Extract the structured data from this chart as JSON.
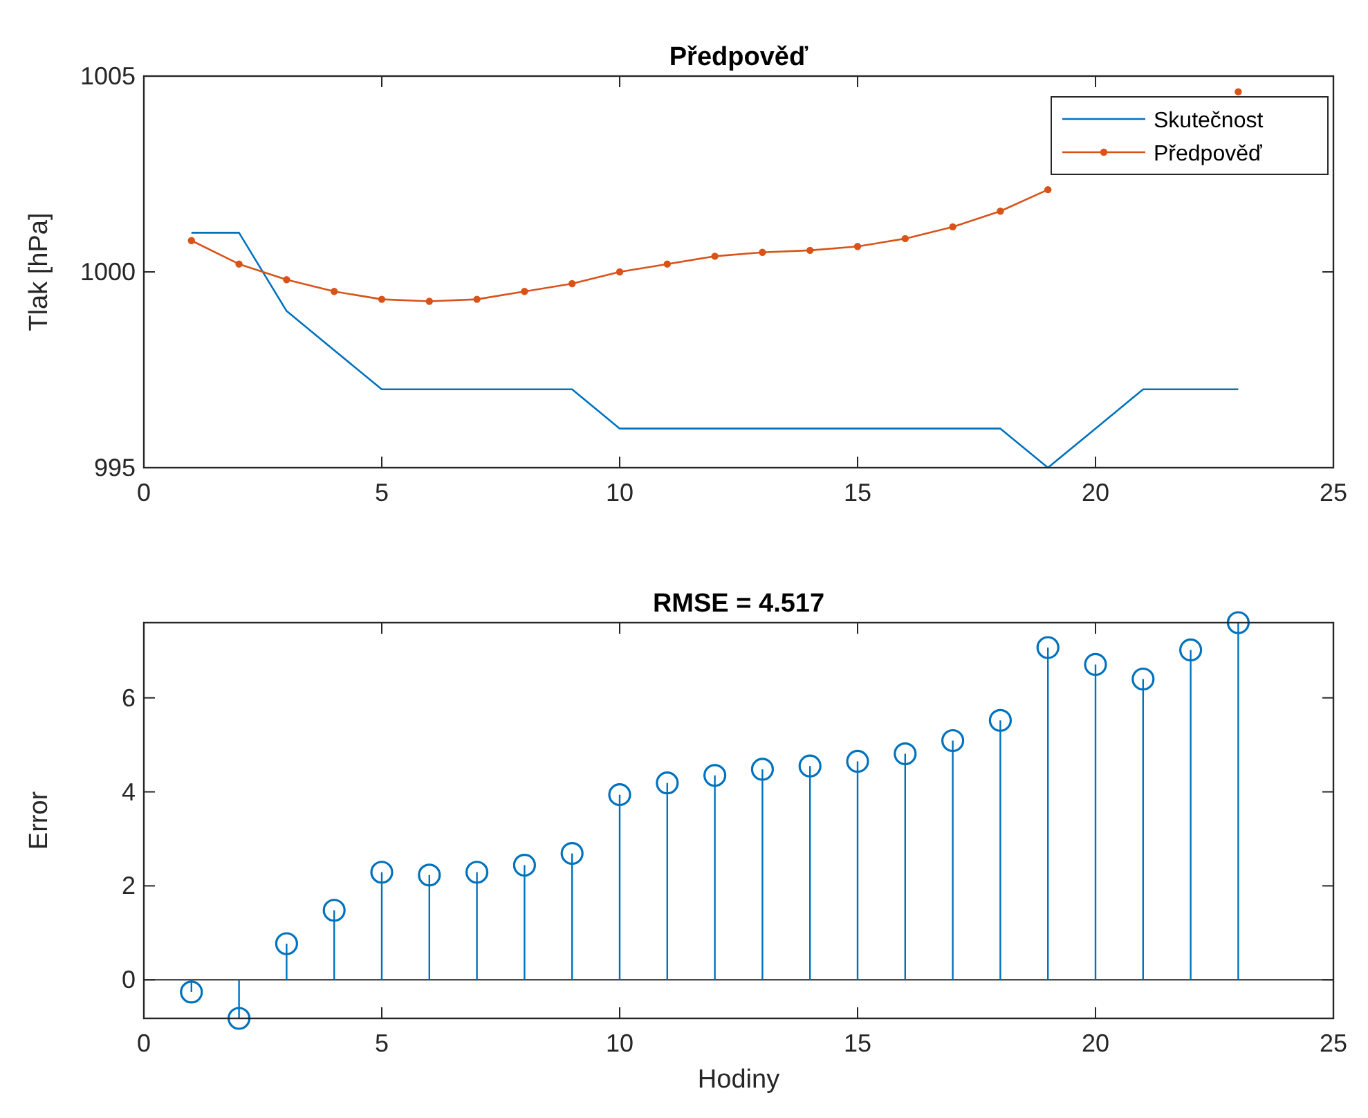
{
  "chart_data": [
    {
      "type": "line",
      "title": "Předpověď",
      "ylabel": "Tlak [hPa]",
      "x": [
        1,
        2,
        3,
        4,
        5,
        6,
        7,
        8,
        9,
        10,
        11,
        12,
        13,
        14,
        15,
        16,
        17,
        18,
        19,
        20,
        21,
        22,
        23
      ],
      "xlim": [
        0,
        25
      ],
      "xticks": [
        0,
        5,
        10,
        15,
        20,
        25
      ],
      "ylim": [
        995,
        1005
      ],
      "yticks": [
        995,
        1000,
        1005
      ],
      "legend": "top right",
      "series": [
        {
          "name": "Skutečnost",
          "color": "#0072bd",
          "marker": "none",
          "values": [
            1001,
            1001,
            999,
            998,
            997,
            997,
            997,
            997,
            997,
            996,
            996,
            996,
            996,
            996,
            996,
            996,
            996,
            996,
            995,
            996,
            997,
            997,
            997
          ]
        },
        {
          "name": "Předpověď",
          "color": "#d95319",
          "marker": "circle",
          "values": [
            1000.8,
            1000.2,
            999.8,
            999.5,
            999.3,
            999.25,
            999.3,
            999.5,
            999.7,
            1000.0,
            1000.2,
            1000.4,
            1000.5,
            1000.55,
            1000.65,
            1000.85,
            1001.15,
            1001.55,
            1002.1,
            null,
            null,
            null,
            1004.6
          ]
        }
      ]
    },
    {
      "type": "lollipop",
      "title": "RMSE = 4.517",
      "xlabel": "Hodiny",
      "ylabel": "Error",
      "x": [
        1,
        2,
        3,
        4,
        5,
        6,
        7,
        8,
        9,
        10,
        11,
        12,
        13,
        14,
        15,
        16,
        17,
        18,
        19,
        20,
        21,
        22,
        23
      ],
      "xlim": [
        0,
        25
      ],
      "xticks": [
        0,
        5,
        10,
        15,
        20,
        25
      ],
      "ylim": [
        -0.82,
        7.6
      ],
      "yticks": [
        0,
        2,
        4,
        6
      ],
      "legend": false,
      "marker": "circle",
      "ref_lines": [
        {
          "axis": "y",
          "value": 0,
          "color": "#262626"
        }
      ],
      "series": [
        {
          "color": "#0072bd",
          "values": [
            -0.26,
            -0.82,
            0.77,
            1.48,
            2.29,
            2.23,
            2.29,
            2.44,
            2.69,
            3.94,
            4.19,
            4.35,
            4.48,
            4.55,
            4.65,
            4.81,
            5.09,
            5.52,
            7.07,
            6.71,
            6.4,
            7.02,
            7.6
          ]
        }
      ]
    }
  ]
}
